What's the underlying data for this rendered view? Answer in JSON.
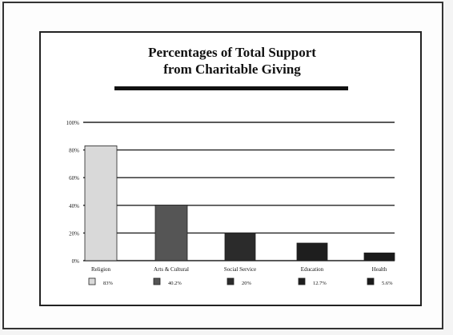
{
  "chart_data": {
    "type": "bar",
    "title_lines": [
      "Percentages of Total Support",
      "from Charitable Giving"
    ],
    "xlabel": "",
    "ylabel": "",
    "ylim": [
      0,
      100
    ],
    "yticks": [
      0,
      20,
      40,
      60,
      80,
      100
    ],
    "ytick_labels": [
      "0%",
      "20%",
      "40%",
      "60%",
      "80%",
      "100%"
    ],
    "grid": true,
    "categories": [
      "Religion",
      "Arts & Cultural",
      "Social Service",
      "Education",
      "Health"
    ],
    "values": [
      83,
      40.2,
      20,
      12.7,
      5.6
    ],
    "legend_labels": [
      "83%",
      "40.2%",
      "20%",
      "12.7%",
      "5.6%"
    ],
    "colors": [
      "#d9d9d9",
      "#555555",
      "#2b2b2b",
      "#1e1e1e",
      "#1a1a1a"
    ]
  }
}
